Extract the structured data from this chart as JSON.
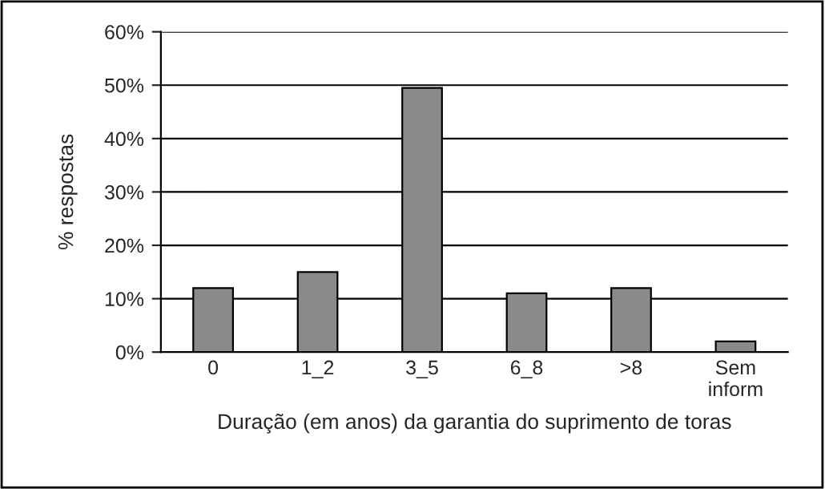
{
  "chart_data": {
    "type": "bar",
    "xlabel": "Duração (em anos) da garantia do suprimento de toras",
    "ylabel": "% respostas",
    "categories": [
      "0",
      "1_2",
      "3_5",
      "6_8",
      ">8",
      "Sem\ninform"
    ],
    "values": [
      12,
      15,
      49.5,
      11,
      12,
      2
    ],
    "color": "#8a8a8a",
    "ylim": [
      0,
      60
    ],
    "yticks": [
      {
        "value": 0,
        "label": "0%"
      },
      {
        "value": 10,
        "label": "10%"
      },
      {
        "value": 20,
        "label": "20%"
      },
      {
        "value": 30,
        "label": "30%"
      },
      {
        "value": 40,
        "label": "40%"
      },
      {
        "value": 50,
        "label": "50%"
      },
      {
        "value": 60,
        "label": "60%"
      }
    ],
    "grid": "y",
    "legend": false
  }
}
